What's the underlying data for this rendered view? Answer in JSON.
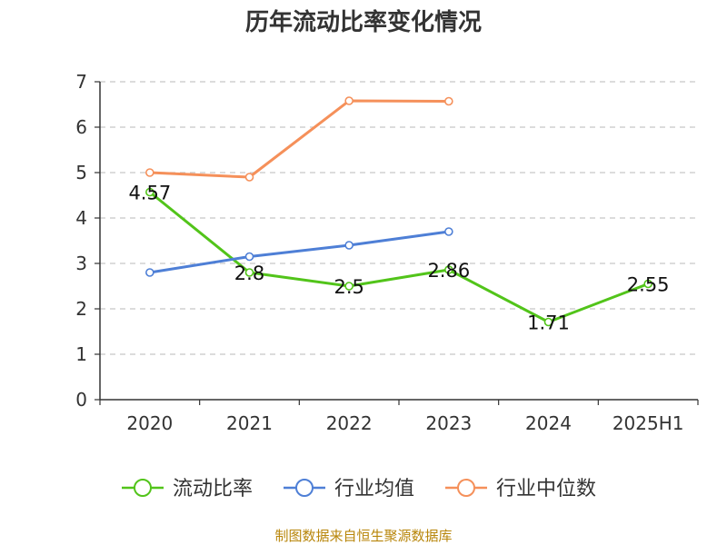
{
  "chart_data": {
    "type": "line",
    "title": "历年流动比率变化情况",
    "categories": [
      "2020",
      "2021",
      "2022",
      "2023",
      "2024",
      "2025H1"
    ],
    "ylim": [
      0,
      7
    ],
    "yticks": [
      "0",
      "1",
      "2",
      "3",
      "4",
      "5",
      "6",
      "7"
    ],
    "grid": true,
    "legend_position": "bottom",
    "series": [
      {
        "name": "流动比率",
        "color": "#52c41a",
        "values": [
          4.57,
          2.8,
          2.5,
          2.86,
          1.71,
          2.55
        ],
        "labels": [
          "4.57",
          "2.8",
          "2.5",
          "2.86",
          "1.71",
          "2.55"
        ]
      },
      {
        "name": "行业均值",
        "color": "#4e7fd6",
        "values": [
          2.8,
          3.15,
          3.4,
          3.7,
          null,
          null
        ]
      },
      {
        "name": "行业中位数",
        "color": "#f5905a",
        "values": [
          5.0,
          4.9,
          6.58,
          6.57,
          null,
          null
        ]
      }
    ]
  },
  "source_note": "制图数据来自恒生聚源数据库",
  "source_note_color": "#b8860b"
}
